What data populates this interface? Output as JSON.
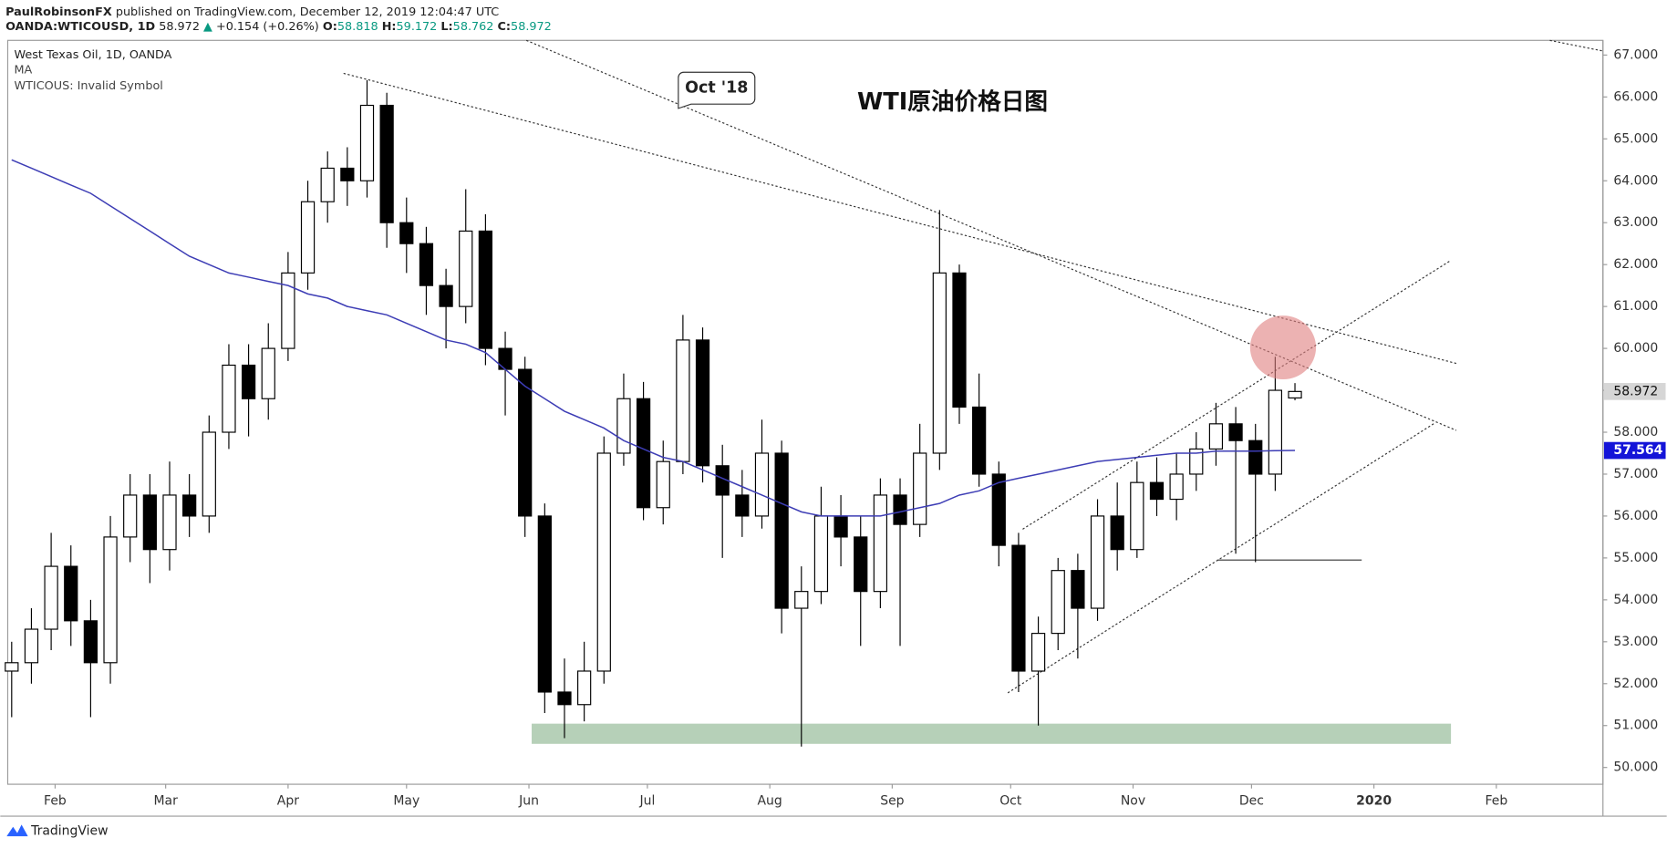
{
  "header": {
    "author": "PaulRobinsonFX",
    "published": "published on TradingView.com, December 12, 2019 12:04:47 UTC",
    "symbol": "OANDA:WTICOUSD, 1D",
    "change_arrow": "▲",
    "change": "+0.154 (+0.26%)",
    "open_label": "O:",
    "high_label": "H:",
    "low_label": "L:",
    "close_label": "C:"
  },
  "footer": "TradingView",
  "chart_data": {
    "type": "candlestick",
    "title": "WTI原油价格日图",
    "callout": "Oct '18",
    "legend_title": "West Texas Oil, 1D, OANDA",
    "note": "WTICOUS: Invalid Symbol",
    "colors": {
      "up": "#ffffff",
      "down": "#000000",
      "wick": "#000000"
    },
    "x": [
      20,
      25,
      30,
      35,
      40,
      45,
      50,
      55,
      60,
      65,
      70,
      75,
      80,
      85,
      90,
      95,
      100,
      105,
      110,
      115,
      120,
      125,
      130,
      135,
      140,
      145,
      150,
      155,
      160,
      165,
      170,
      175,
      180,
      185,
      190,
      195,
      200,
      205,
      210,
      215,
      220,
      225,
      230,
      235,
      240,
      245,
      250,
      255,
      260,
      265,
      270,
      275,
      280,
      285,
      290,
      295,
      300,
      305,
      310,
      315,
      320,
      325,
      330,
      335,
      340,
      345
    ],
    "open": [
      52.3,
      52.5,
      53.3,
      54.8,
      53.5,
      52.5,
      55.5,
      56.5,
      55.2,
      56.5,
      56,
      58,
      59.6,
      58.8,
      60,
      61.8,
      63.5,
      64.3,
      64,
      65.8,
      63,
      62.5,
      61.5,
      61,
      62.8,
      60,
      59.5,
      56,
      51.8,
      51.5,
      52.3,
      57.5,
      58.8,
      56.2,
      57.3,
      60.2,
      57.2,
      56.5,
      56,
      57.5,
      53.8,
      54.2,
      56,
      55.5,
      54.2,
      56.5,
      55.8,
      57.5,
      61.8,
      58.6,
      57,
      55.3,
      52.3,
      53.2,
      54.7,
      53.8,
      56,
      55.2,
      56.8,
      56.4,
      57,
      57.6,
      58.2,
      57.8,
      57,
      58.818
    ],
    "high": [
      53.0,
      53.8,
      55.6,
      55.3,
      54.0,
      56.0,
      57.0,
      57.0,
      57.3,
      57.0,
      58.4,
      60.1,
      60.1,
      60.6,
      62.3,
      64.0,
      64.7,
      64.8,
      66.4,
      66.1,
      63.6,
      62.9,
      61.9,
      63.8,
      63.2,
      60.4,
      59.8,
      56.3,
      52.6,
      53.0,
      57.9,
      59.4,
      59.2,
      57.8,
      60.8,
      60.5,
      57.7,
      57.1,
      58.3,
      57.8,
      54.8,
      56.7,
      56.5,
      56.0,
      56.9,
      56.9,
      58.2,
      63.3,
      62.0,
      59.4,
      57.3,
      55.6,
      53.6,
      55.0,
      55.1,
      56.4,
      56.8,
      57.3,
      57.4,
      57.5,
      58.0,
      58.7,
      58.6,
      58.2,
      59.8,
      59.172
    ],
    "low": [
      51.2,
      52.0,
      52.8,
      52.9,
      51.2,
      52.0,
      54.9,
      54.4,
      54.7,
      55.5,
      55.6,
      57.6,
      57.9,
      58.3,
      59.7,
      61.4,
      63.0,
      63.4,
      63.6,
      62.4,
      61.8,
      60.8,
      60.0,
      60.6,
      59.6,
      58.4,
      55.5,
      51.3,
      50.7,
      51.1,
      52.0,
      57.2,
      55.9,
      55.8,
      57.0,
      56.8,
      55.0,
      55.5,
      55.7,
      53.2,
      50.5,
      53.9,
      54.8,
      52.9,
      53.8,
      52.9,
      55.5,
      57.1,
      58.2,
      56.7,
      54.8,
      51.8,
      51.0,
      52.8,
      52.6,
      53.5,
      54.7,
      55.0,
      56.0,
      55.9,
      56.6,
      57.2,
      55.1,
      54.9,
      56.6,
      58.762
    ],
    "close": [
      52.5,
      53.3,
      54.8,
      53.5,
      52.5,
      55.5,
      56.5,
      55.2,
      56.5,
      56,
      58,
      59.6,
      58.8,
      60,
      61.8,
      63.5,
      64.3,
      64,
      65.8,
      63,
      62.5,
      61.5,
      61,
      62.8,
      60,
      59.5,
      56,
      51.8,
      51.5,
      52.3,
      57.5,
      58.8,
      56.2,
      57.3,
      60.2,
      57.2,
      56.5,
      56,
      57.5,
      53.8,
      54.2,
      56,
      55.5,
      54.2,
      56.5,
      55.8,
      57.5,
      61.8,
      58.6,
      57,
      55.3,
      52.3,
      53.2,
      54.7,
      53.8,
      56,
      55.2,
      56.8,
      56.4,
      57,
      57.6,
      58.2,
      57.8,
      57,
      59,
      58.972
    ],
    "ma": {
      "name": "MA",
      "color": "#3d3db5",
      "values": [
        64.5,
        64.3,
        64.1,
        63.9,
        63.7,
        63.4,
        63.1,
        62.8,
        62.5,
        62.2,
        62.0,
        61.8,
        61.7,
        61.6,
        61.5,
        61.3,
        61.2,
        61.0,
        60.9,
        60.8,
        60.6,
        60.4,
        60.2,
        60.1,
        59.9,
        59.5,
        59.1,
        58.8,
        58.5,
        58.3,
        58.1,
        57.8,
        57.6,
        57.4,
        57.3,
        57.1,
        56.9,
        56.7,
        56.5,
        56.3,
        56.1,
        56.0,
        56.0,
        56.0,
        56.0,
        56.1,
        56.2,
        56.3,
        56.5,
        56.6,
        56.8,
        56.9,
        57.0,
        57.1,
        57.2,
        57.3,
        57.35,
        57.4,
        57.45,
        57.5,
        57.5,
        57.55,
        57.55,
        57.55,
        57.56,
        57.564
      ]
    },
    "xlim": [
      19,
      423
    ],
    "xticks": [
      {
        "value": 31,
        "label": "Feb"
      },
      {
        "value": 59,
        "label": "Mar"
      },
      {
        "value": 90,
        "label": "Apr"
      },
      {
        "value": 120,
        "label": "May"
      },
      {
        "value": 151,
        "label": "Jun"
      },
      {
        "value": 181,
        "label": "Jul"
      },
      {
        "value": 212,
        "label": "Aug"
      },
      {
        "value": 243,
        "label": "Sep"
      },
      {
        "value": 273,
        "label": "Oct"
      },
      {
        "value": 304,
        "label": "Nov"
      },
      {
        "value": 334,
        "label": "Dec"
      },
      {
        "value": 365,
        "label": "2020"
      },
      {
        "value": 396,
        "label": "Feb"
      }
    ],
    "ylim": [
      49.6,
      67.35
    ],
    "yticks": [
      {
        "value": 50,
        "label": "50.000"
      },
      {
        "value": 51,
        "label": "51.000"
      },
      {
        "value": 52,
        "label": "52.000"
      },
      {
        "value": 53,
        "label": "53.000"
      },
      {
        "value": 54,
        "label": "54.000"
      },
      {
        "value": 55,
        "label": "55.000"
      },
      {
        "value": 56,
        "label": "56.000"
      },
      {
        "value": 57,
        "label": "57.000"
      },
      {
        "value": 58,
        "label": "58.000"
      },
      {
        "value": 59,
        "label": "59.000"
      },
      {
        "value": 60,
        "label": "60.000"
      },
      {
        "value": 61,
        "label": "61.000"
      },
      {
        "value": 62,
        "label": "62.000"
      },
      {
        "value": 63,
        "label": "63.000"
      },
      {
        "value": 64,
        "label": "64.000"
      },
      {
        "value": 65,
        "label": "65.000"
      },
      {
        "value": 66,
        "label": "66.000"
      },
      {
        "value": 67,
        "label": "67.000"
      }
    ]
  }
}
